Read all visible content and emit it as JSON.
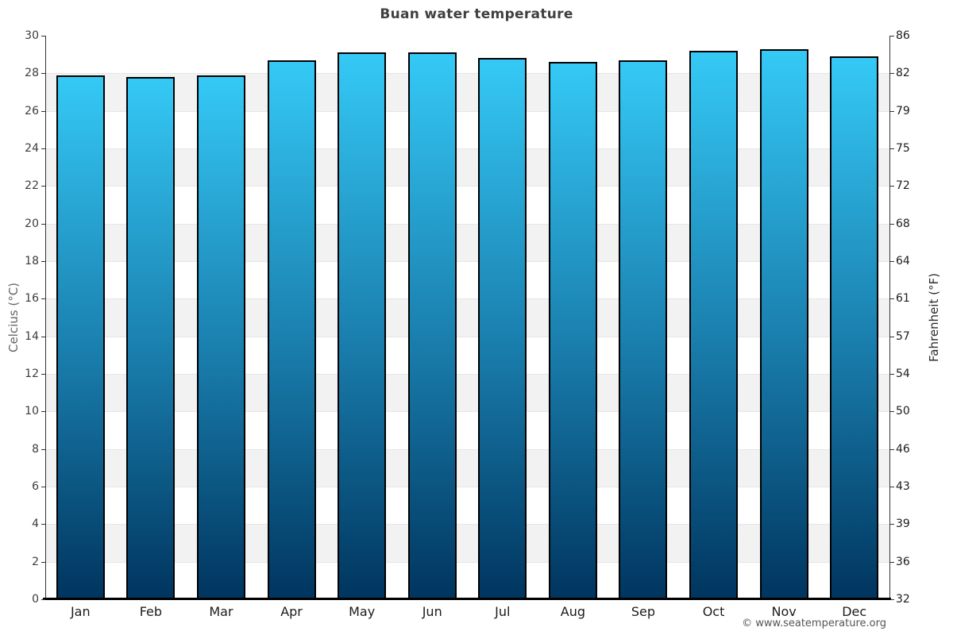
{
  "chart_data": {
    "type": "bar",
    "title": "Buan water temperature",
    "categories": [
      "Jan",
      "Feb",
      "Mar",
      "Apr",
      "May",
      "Jun",
      "Jul",
      "Aug",
      "Sep",
      "Oct",
      "Nov",
      "Dec"
    ],
    "values": [
      27.9,
      27.8,
      27.9,
      28.7,
      29.1,
      29.1,
      28.8,
      28.6,
      28.7,
      29.2,
      29.3,
      28.9
    ],
    "ylabel_left": "Celcius (°C)",
    "ylabel_right": "Fahrenheit (°F)",
    "ylim": [
      0,
      30
    ],
    "ytick_step": 2,
    "yticks_left": [
      "0",
      "2",
      "4",
      "6",
      "8",
      "10",
      "12",
      "14",
      "16",
      "18",
      "20",
      "22",
      "24",
      "26",
      "28",
      "30"
    ],
    "yticks_right": [
      "32",
      "36",
      "39",
      "43",
      "46",
      "50",
      "54",
      "57",
      "61",
      "64",
      "68",
      "72",
      "75",
      "79",
      "82",
      "86"
    ],
    "legend": "none",
    "grid": "horizontal-bands",
    "colors": {
      "bar_gradient_top": "#35c9f6",
      "bar_gradient_mid": "#1a7fae",
      "bar_gradient_bottom": "#00355f",
      "bar_border": "#000000",
      "band_fill": "#f2f2f2",
      "gridline": "#e6e6e6",
      "axis": "#333333"
    }
  },
  "footer": {
    "copyright": "© www.seatemperature.org"
  }
}
